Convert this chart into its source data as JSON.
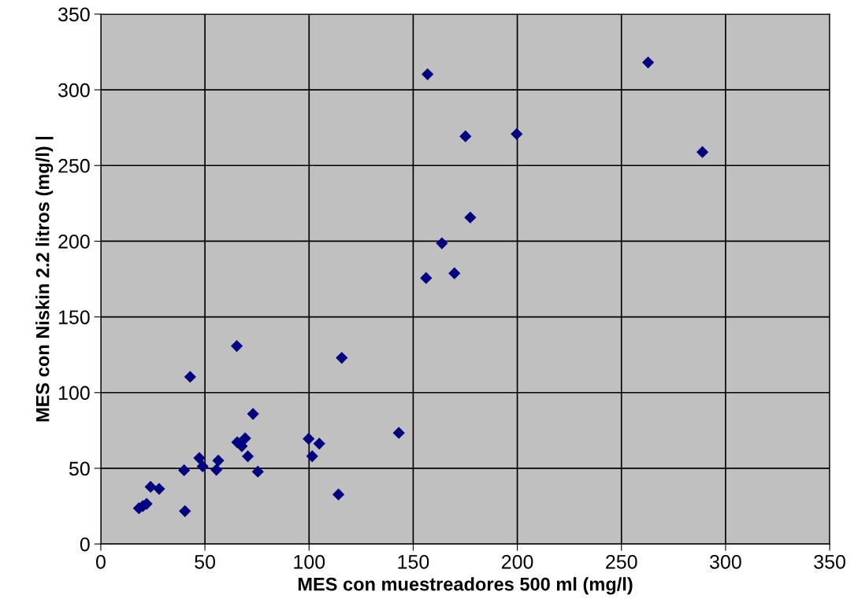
{
  "chart_data": {
    "type": "scatter",
    "xlabel": "MES con muestreadores 500 ml (mg/l)",
    "ylabel": "MES con Niskin 2.2 litros (mg/l) |",
    "series": [
      {
        "color": "#000080",
        "x": [
          18.3,
          20.2,
          22.0,
          23.9,
          28.0,
          40.0,
          40.4,
          42.9,
          47.3,
          48.9,
          55.5,
          56.4,
          65.3,
          65.5,
          67.7,
          69.3,
          70.6,
          73.1,
          75.4,
          99.8,
          101.5,
          104.9,
          114.1,
          115.7,
          143.1,
          156.2,
          156.9,
          163.8,
          169.8,
          175.1,
          177.4,
          199.7,
          262.8,
          288.9
        ],
        "values": [
          23.6,
          25.1,
          26.5,
          37.8,
          36.4,
          48.7,
          21.7,
          110.4,
          56.8,
          51.3,
          49.0,
          55.1,
          130.8,
          67.2,
          64.6,
          69.8,
          57.9,
          85.9,
          47.8,
          69.5,
          58.0,
          66.3,
          32.7,
          123.0,
          73.4,
          175.7,
          310.3,
          198.6,
          178.8,
          269.3,
          215.7,
          270.8,
          318.1,
          258.9
        ]
      }
    ],
    "xlim": [
      0,
      350
    ],
    "xticks": [
      0,
      50,
      100,
      150,
      200,
      250,
      300,
      350
    ],
    "ylim": [
      0,
      350
    ],
    "yticks": [
      0,
      50,
      100,
      150,
      200,
      250,
      300,
      350
    ],
    "grid": true,
    "marker": "diamond"
  }
}
